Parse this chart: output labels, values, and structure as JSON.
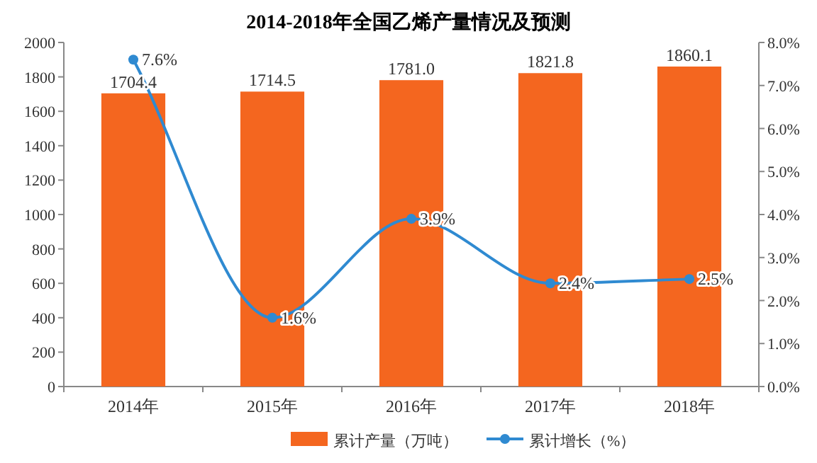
{
  "chart_data": {
    "type": "bar",
    "title": "2014-2018年全国乙烯产量情况及预测",
    "categories": [
      "2014年",
      "2015年",
      "2016年",
      "2017年",
      "2018年"
    ],
    "series": [
      {
        "name": "累计产量（万吨）",
        "color": "#f4661f",
        "values": [
          1704.4,
          1714.5,
          1781.0,
          1821.8,
          1860.1
        ],
        "value_labels": [
          "1704.4",
          "1714.5",
          "1781.0",
          "1821.8",
          "1860.1"
        ]
      },
      {
        "name": "累计增长（%）",
        "type": "line",
        "axis": "y2",
        "color": "#2f8ad1",
        "values": [
          7.6,
          1.6,
          3.9,
          2.4,
          2.5
        ],
        "value_labels": [
          "7.6%",
          "1.6%",
          "3.9%",
          "2.4%",
          "2.5%"
        ]
      }
    ],
    "ylim": [
      0,
      2000
    ],
    "yticks": [
      0,
      200,
      400,
      600,
      800,
      1000,
      1200,
      1400,
      1600,
      1800,
      2000
    ],
    "y2lim": [
      0,
      8
    ],
    "y2ticks": [
      {
        "value": 0,
        "label": "0.0%"
      },
      {
        "value": 1,
        "label": "1.0%"
      },
      {
        "value": 2,
        "label": "2.0%"
      },
      {
        "value": 3,
        "label": "3.0%"
      },
      {
        "value": 4,
        "label": "4.0%"
      },
      {
        "value": 5,
        "label": "5.0%"
      },
      {
        "value": 6,
        "label": "6.0%"
      },
      {
        "value": 7,
        "label": "7.0%"
      },
      {
        "value": 8,
        "label": "8.0%"
      }
    ],
    "marker": "circle",
    "line_style": "solid",
    "legend": "bottom",
    "grid": false
  }
}
